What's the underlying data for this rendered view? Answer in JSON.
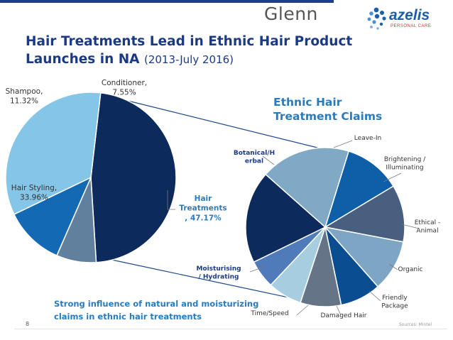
{
  "header": {
    "title": "Hair Treatments Lead in Ethnic Hair Product Launches in NA",
    "subtitle": "(2013-July 2016)",
    "logo_left": "Glenn",
    "logo_right": "azelis",
    "logo_right_tag": "PERSONAL CARE"
  },
  "footer": {
    "note": "Strong influence of natural and moisturizing\nclaims in ethnic hair treatments",
    "page_number": "8",
    "source": "Sources: Mintel"
  },
  "colors": {
    "title": "#1b3a85",
    "accent_text": "#2a7bbd",
    "hair_treatments": "#0c2a5c",
    "hair_styling": "#85c6e8",
    "shampoo": "#1369b3",
    "conditioner": "#61809e"
  },
  "chart_data": [
    {
      "type": "pie",
      "title": "",
      "categories": [
        "Hair Treatments",
        "Conditioner",
        "Shampoo",
        "Hair Styling"
      ],
      "values": [
        47.17,
        7.55,
        11.32,
        33.96
      ],
      "labels": [
        {
          "text": "Hair\nTreatments\n, 47.17%",
          "bold": true
        },
        {
          "text": "Conditioner,\n7.55%",
          "bold": false
        },
        {
          "text": "Shampoo,\n11.32%",
          "bold": false
        },
        {
          "text": "Hair Styling,\n33.96%",
          "bold": false
        }
      ],
      "colors": [
        "#0c2a5c",
        "#61809e",
        "#1369b3",
        "#85c6e8"
      ]
    },
    {
      "type": "pie",
      "title": "Ethnic Hair\nTreatment Claims",
      "categories": [
        "Leave-In",
        "Brightening / Illuminating",
        "Ethical - Animal",
        "Organic",
        "Friendly Package",
        "Damaged Hair",
        "Time/Speed",
        "Moisturising / Hydrating",
        "Botanical/Herbal"
      ],
      "values": [
        10.5,
        10.5,
        9.5,
        7.5,
        7.5,
        6.3,
        5.2,
        17.0,
        16.5
      ],
      "labels": [
        {
          "text": "Leave-In",
          "bold": false
        },
        {
          "text": "Brightening /\nIlluminating",
          "bold": false
        },
        {
          "text": "Ethical -\nAnimal",
          "bold": false
        },
        {
          "text": "Organic",
          "bold": false
        },
        {
          "text": "Friendly\nPackage",
          "bold": false
        },
        {
          "text": "Damaged Hair",
          "bold": false
        },
        {
          "text": "Time/Speed",
          "bold": false
        },
        {
          "text": "Moisturising\n/ Hydrating",
          "bold": true
        },
        {
          "text": "Botanical/H\nerbal",
          "bold": true
        }
      ],
      "colors": [
        "#0e5ea8",
        "#485f80",
        "#7ea6c4",
        "#0b4d91",
        "#657487",
        "#a7cde0",
        "#4f7bbb",
        "#0c2a5c",
        "#7fa9c4"
      ]
    }
  ]
}
